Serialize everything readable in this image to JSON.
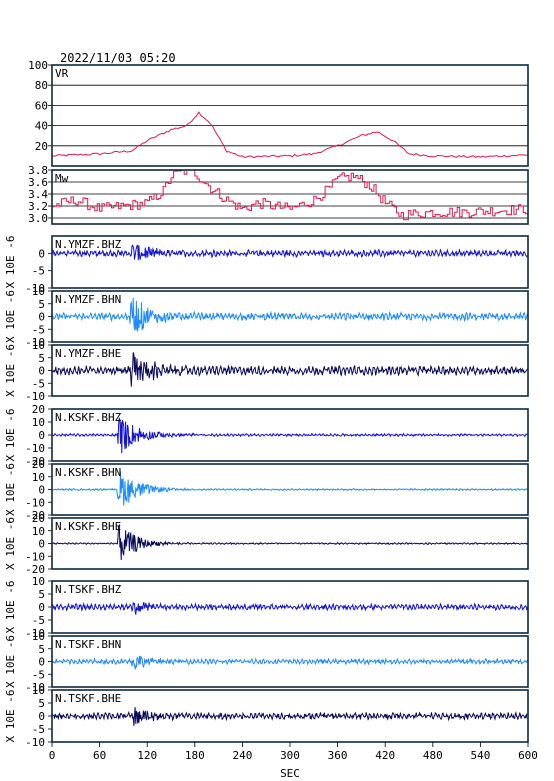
{
  "header": {
    "datetime": "2022/11/03 05:20"
  },
  "x_axis": {
    "label": "SEC",
    "range": [
      0,
      600
    ],
    "ticks": [
      "0",
      "60",
      "120",
      "180",
      "240",
      "300",
      "360",
      "420",
      "480",
      "540",
      "600"
    ]
  },
  "colors": {
    "vr_mw": "#e0194f",
    "bhz": "#1414d2",
    "bhn": "#1e8cff",
    "bhe": "#0a0a5a",
    "frame": "#10283c"
  },
  "chart_data": [
    {
      "type": "line",
      "name": "VR",
      "title": "VR",
      "ylim": [
        0,
        100
      ],
      "yticks": [
        "100",
        "80",
        "60",
        "40",
        "20"
      ],
      "grid": true,
      "x": [
        0,
        60,
        100,
        120,
        150,
        170,
        185,
        200,
        220,
        240,
        300,
        330,
        360,
        390,
        410,
        430,
        450,
        480,
        540,
        600
      ],
      "y": [
        10,
        12,
        15,
        25,
        36,
        40,
        53,
        42,
        15,
        9,
        10,
        12,
        20,
        30,
        34,
        25,
        12,
        10,
        9,
        11
      ]
    },
    {
      "type": "line",
      "name": "Mw",
      "title": "Mw",
      "ylim": [
        2.9,
        3.8
      ],
      "yticks": [
        "3.8",
        "3.6",
        "3.4",
        "3.2",
        "3.0"
      ],
      "grid": true,
      "x": [
        0,
        30,
        60,
        90,
        120,
        140,
        150,
        160,
        170,
        180,
        200,
        220,
        240,
        260,
        300,
        330,
        350,
        360,
        380,
        400,
        420,
        440,
        480,
        520,
        600
      ],
      "y": [
        3.2,
        3.3,
        3.15,
        3.2,
        3.25,
        3.45,
        3.7,
        3.75,
        3.8,
        3.75,
        3.5,
        3.3,
        3.15,
        3.25,
        3.15,
        3.3,
        3.5,
        3.65,
        3.7,
        3.55,
        3.25,
        3.05,
        3.1,
        3.1,
        3.15
      ]
    }
  ],
  "traces": [
    {
      "label": "N.YMZF.BHZ",
      "comp": "bhz",
      "yticks": [
        "0",
        "-5",
        "-10"
      ],
      "ylim": [
        -10,
        5
      ],
      "onset": 98,
      "peak": 3.6,
      "noise": 0.6,
      "decay": 25,
      "unit_label": "X 10E -6"
    },
    {
      "label": "N.YMZF.BHN",
      "comp": "bhn",
      "yticks": [
        "10",
        "5",
        "0",
        "-5",
        "-10"
      ],
      "ylim": [
        -10,
        10
      ],
      "onset": 98,
      "peak": 9,
      "noise": 0.9,
      "decay": 25,
      "unit_label": "X 10E -6"
    },
    {
      "label": "N.YMZF.BHE",
      "comp": "bhe",
      "yticks": [
        "10",
        "5",
        "0",
        "-5",
        "-10"
      ],
      "ylim": [
        -10,
        10
      ],
      "onset": 98,
      "peak": 9,
      "noise": 1.1,
      "decay": 22,
      "unit_label": "X 10E -6"
    },
    {
      "label": "N.KSKF.BHZ",
      "comp": "bhz",
      "yticks": [
        "20",
        "10",
        "0",
        "-10",
        "-20"
      ],
      "ylim": [
        -20,
        20
      ],
      "onset": 82,
      "peak": 18,
      "noise": 0.6,
      "decay": 25,
      "unit_label": "X 10E -6"
    },
    {
      "label": "N.KSKF.BHN",
      "comp": "bhn",
      "yticks": [
        "20",
        "10",
        "0",
        "-10",
        "-20"
      ],
      "ylim": [
        -20,
        20
      ],
      "onset": 82,
      "peak": 18,
      "noise": 0.4,
      "decay": 25,
      "unit_label": "X 10E -6"
    },
    {
      "label": "N.KSKF.BHE",
      "comp": "bhe",
      "yticks": [
        "20",
        "10",
        "0",
        "-10",
        "-20"
      ],
      "ylim": [
        -20,
        20
      ],
      "onset": 82,
      "peak": 18,
      "noise": 0.4,
      "decay": 22,
      "unit_label": "X 10E -6"
    },
    {
      "label": "N.TSKF.BHZ",
      "comp": "bhz",
      "yticks": [
        "10",
        "5",
        "0",
        "-5",
        "-10"
      ],
      "ylim": [
        -10,
        10
      ],
      "onset": 100,
      "peak": 3.5,
      "noise": 0.7,
      "decay": 20,
      "unit_label": "X 10E -6"
    },
    {
      "label": "N.TSKF.BHN",
      "comp": "bhn",
      "yticks": [
        "10",
        "5",
        "0",
        "-5",
        "-10"
      ],
      "ylim": [
        -10,
        10
      ],
      "onset": 100,
      "peak": 4,
      "noise": 0.6,
      "decay": 20,
      "unit_label": "X 10E -6"
    },
    {
      "label": "N.TSKF.BHE",
      "comp": "bhe",
      "yticks": [
        "10",
        "5",
        "0",
        "-5",
        "-10"
      ],
      "ylim": [
        -10,
        10
      ],
      "onset": 100,
      "peak": 5,
      "noise": 0.8,
      "decay": 20,
      "unit_label": "X 10E -6"
    }
  ]
}
